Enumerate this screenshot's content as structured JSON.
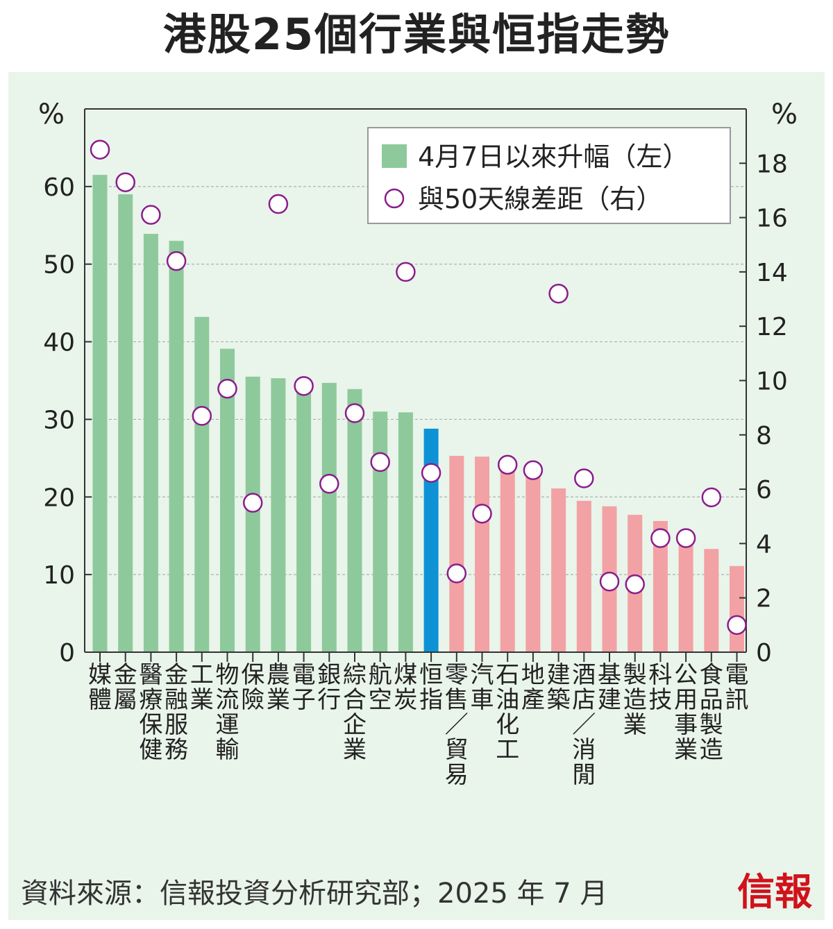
{
  "title": "港股25個行業與恒指走勢",
  "source": "資料來源：信報投資分析研究部；2025 年 7 月",
  "brand": "信報",
  "colors": {
    "above": "#8ec99c",
    "index": "#0d93d5",
    "below": "#f2a2a4",
    "marker": "#8b1c8c",
    "panel": "#e9f4ea"
  },
  "chart_data": {
    "type": "bar",
    "left_axis": {
      "unit": "%",
      "ylim": [
        0,
        70
      ],
      "ticks": [
        0,
        10,
        20,
        30,
        40,
        50,
        60
      ]
    },
    "right_axis": {
      "unit": "%",
      "ylim": [
        0,
        20
      ],
      "ticks": [
        0,
        2,
        4,
        6,
        8,
        10,
        12,
        14,
        16,
        18
      ]
    },
    "grid": true,
    "legend_position": "top-right",
    "categories": [
      [
        "媒",
        "體"
      ],
      [
        "金",
        "屬"
      ],
      [
        "醫",
        "療",
        "保",
        "健"
      ],
      [
        "金",
        "融",
        "服",
        "務"
      ],
      [
        "工",
        "業"
      ],
      [
        "物",
        "流",
        "運",
        "輸"
      ],
      [
        "保",
        "險"
      ],
      [
        "農",
        "業"
      ],
      [
        "電",
        "子"
      ],
      [
        "銀",
        "行"
      ],
      [
        "綜",
        "合",
        "企",
        "業"
      ],
      [
        "航",
        "空"
      ],
      [
        "煤",
        "炭"
      ],
      [
        "恒",
        "指"
      ],
      [
        "零",
        "售",
        "／",
        "貿",
        "易"
      ],
      [
        "汽",
        "車"
      ],
      [
        "石",
        "油",
        "化",
        "工"
      ],
      [
        "地",
        "產"
      ],
      [
        "建",
        "築"
      ],
      [
        "酒",
        "店",
        "／",
        "消",
        "閒"
      ],
      [
        "基",
        "建"
      ],
      [
        "製",
        "造",
        "業"
      ],
      [
        "科",
        "技"
      ],
      [
        "公",
        "用",
        "事",
        "業"
      ],
      [
        "食",
        "品",
        "製",
        "造"
      ],
      [
        "電",
        "訊"
      ]
    ],
    "series": [
      {
        "name": "4月7日以來升幅（左）",
        "axis": "left",
        "values": [
          61.5,
          59.0,
          53.9,
          53.0,
          43.2,
          39.1,
          35.5,
          35.3,
          34.5,
          34.7,
          33.9,
          31.0,
          30.9,
          28.8,
          25.3,
          25.2,
          24.8,
          22.6,
          21.1,
          19.5,
          18.8,
          17.7,
          16.9,
          14.3,
          13.3,
          11.1
        ]
      },
      {
        "name": "與50天線差距（右）",
        "axis": "right",
        "values": [
          18.5,
          17.3,
          16.1,
          14.4,
          8.7,
          9.7,
          5.5,
          16.5,
          9.8,
          6.2,
          8.8,
          7.0,
          14.0,
          6.6,
          2.9,
          5.1,
          6.9,
          6.7,
          13.2,
          6.4,
          2.6,
          2.5,
          4.2,
          4.2,
          5.7,
          1.0
        ]
      }
    ],
    "bar_groups": {
      "above_index": [
        0,
        12
      ],
      "index": [
        13,
        13
      ],
      "below_index": [
        14,
        25
      ]
    }
  }
}
